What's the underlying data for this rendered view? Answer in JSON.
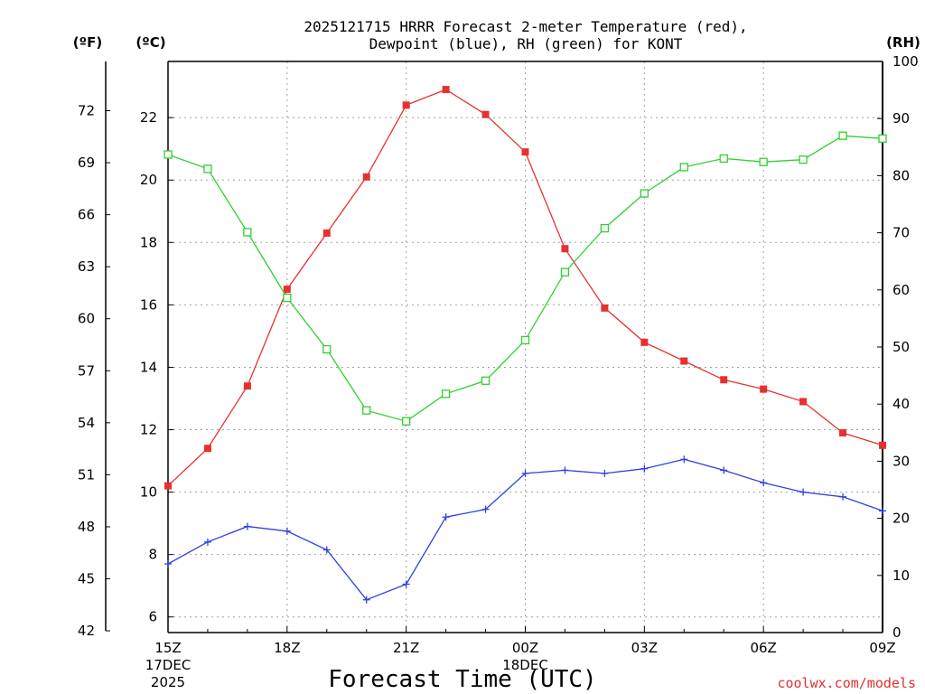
{
  "chart_data": {
    "type": "line",
    "title_line1": "2025121715 HRRR Forecast 2-meter Temperature (red),",
    "title_line2": "Dewpoint (blue), RH (green) for KONT",
    "xlabel": "Forecast Time (UTC)",
    "credit": "coolwx.com/models",
    "unit_labels": {
      "fahrenheit": "(ºF)",
      "celsius": "(ºC)",
      "rh": "(RH)"
    },
    "x_ticks": [
      {
        "hour": 0,
        "label": "15Z",
        "sub1": "17DEC",
        "sub2": "2025"
      },
      {
        "hour": 3,
        "label": "18Z",
        "sub1": "",
        "sub2": ""
      },
      {
        "hour": 6,
        "label": "21Z",
        "sub1": "",
        "sub2": ""
      },
      {
        "hour": 9,
        "label": "00Z",
        "sub1": "18DEC",
        "sub2": ""
      },
      {
        "hour": 12,
        "label": "03Z",
        "sub1": "",
        "sub2": ""
      },
      {
        "hour": 15,
        "label": "06Z",
        "sub1": "",
        "sub2": ""
      },
      {
        "hour": 18,
        "label": "09Z",
        "sub1": "",
        "sub2": ""
      }
    ],
    "x_range_hours": [
      0,
      18
    ],
    "celsius_axis": {
      "range": [
        5.5,
        23.8
      ],
      "ticks": [
        6,
        8,
        10,
        12,
        14,
        16,
        18,
        20,
        22
      ]
    },
    "fahrenheit_axis": {
      "ticks": [
        42,
        45,
        48,
        51,
        54,
        57,
        60,
        63,
        66,
        69,
        72
      ]
    },
    "rh_axis": {
      "range": [
        0,
        100
      ],
      "ticks": [
        0,
        10,
        20,
        30,
        40,
        50,
        60,
        70,
        80,
        90,
        100
      ]
    },
    "grid": true,
    "colors": {
      "temperature": "#e83030",
      "dewpoint": "#3040e0",
      "rh": "#30d030"
    },
    "series": [
      {
        "key": "temperature",
        "marker": "filled-square",
        "axis": "celsius",
        "x": [
          0,
          1,
          2,
          3,
          4,
          5,
          6,
          7,
          8,
          9,
          10,
          11,
          12,
          13,
          14,
          15,
          16,
          17,
          18
        ],
        "values": [
          10.2,
          11.4,
          13.4,
          16.5,
          18.3,
          20.1,
          22.4,
          22.9,
          22.1,
          20.9,
          17.8,
          15.9,
          14.8,
          14.2,
          13.6,
          13.3,
          12.9,
          11.9,
          11.5
        ]
      },
      {
        "key": "dewpoint",
        "marker": "plus",
        "axis": "celsius",
        "x": [
          0,
          1,
          2,
          3,
          4,
          5,
          6,
          7,
          8,
          9,
          10,
          11,
          12,
          13,
          14,
          15,
          16,
          17,
          18
        ],
        "values": [
          7.7,
          8.4,
          8.9,
          8.75,
          8.15,
          6.55,
          7.05,
          9.2,
          9.45,
          10.6,
          10.7,
          10.6,
          10.75,
          11.05,
          10.7,
          10.3,
          10.0,
          9.85,
          9.4
        ]
      },
      {
        "key": "rh",
        "marker": "open-square",
        "axis": "rh",
        "x": [
          0,
          1,
          2,
          3,
          4,
          5,
          6,
          7,
          8,
          9,
          10,
          11,
          12,
          13,
          14,
          15,
          16,
          17,
          18
        ],
        "values": [
          83.7,
          81.2,
          70.1,
          58.6,
          49.6,
          38.9,
          37.0,
          41.8,
          44.1,
          51.2,
          63.1,
          70.8,
          76.9,
          81.5,
          83.0,
          82.4,
          82.8,
          87.0,
          86.5
        ]
      }
    ]
  }
}
